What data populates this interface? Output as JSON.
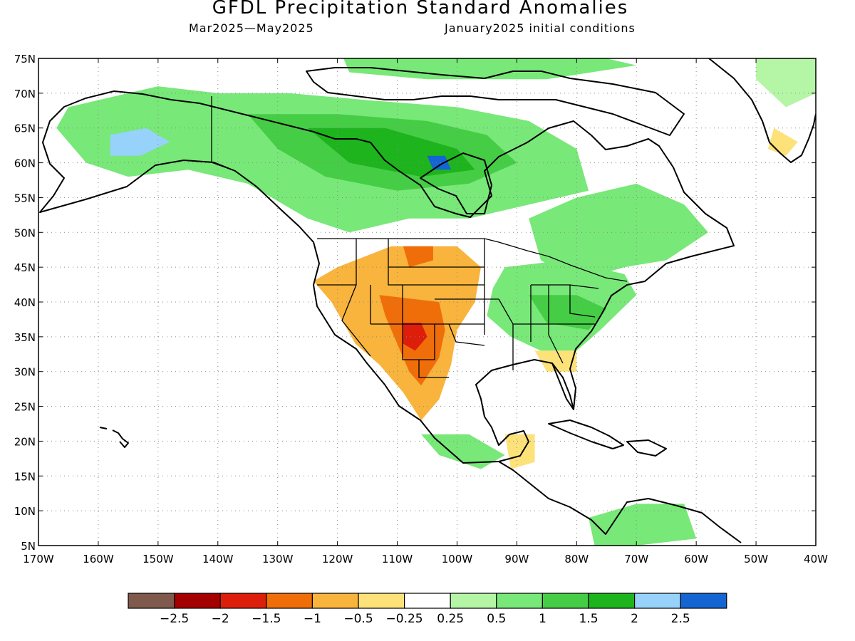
{
  "title": "GFDL Precipitation Standard Anomalies",
  "subtitle_left": "Mar2025—May2025",
  "subtitle_right": "January2025 initial conditions",
  "lat_ticks": [
    {
      "value": 75,
      "label": "75N"
    },
    {
      "value": 70,
      "label": "70N"
    },
    {
      "value": 65,
      "label": "65N"
    },
    {
      "value": 60,
      "label": "60N"
    },
    {
      "value": 55,
      "label": "55N"
    },
    {
      "value": 50,
      "label": "50N"
    },
    {
      "value": 45,
      "label": "45N"
    },
    {
      "value": 40,
      "label": "40N"
    },
    {
      "value": 35,
      "label": "35N"
    },
    {
      "value": 30,
      "label": "30N"
    },
    {
      "value": 25,
      "label": "25N"
    },
    {
      "value": 20,
      "label": "20N"
    },
    {
      "value": 15,
      "label": "15N"
    },
    {
      "value": 10,
      "label": "10N"
    },
    {
      "value": 5,
      "label": "5N"
    }
  ],
  "lon_ticks": [
    {
      "value": -170,
      "label": "170W"
    },
    {
      "value": -160,
      "label": "160W"
    },
    {
      "value": -150,
      "label": "150W"
    },
    {
      "value": -140,
      "label": "140W"
    },
    {
      "value": -130,
      "label": "130W"
    },
    {
      "value": -120,
      "label": "120W"
    },
    {
      "value": -110,
      "label": "110W"
    },
    {
      "value": -100,
      "label": "100W"
    },
    {
      "value": -90,
      "label": "90W"
    },
    {
      "value": -80,
      "label": "80W"
    },
    {
      "value": -70,
      "label": "70W"
    },
    {
      "value": -60,
      "label": "60W"
    },
    {
      "value": -50,
      "label": "50W"
    },
    {
      "value": -40,
      "label": "40W"
    }
  ],
  "colorbar": {
    "colors": [
      "#7f5a4c",
      "#a50000",
      "#dc1e0a",
      "#f06e0a",
      "#f8b43c",
      "#fde27a",
      "#ffffff",
      "#b4f5a6",
      "#78e878",
      "#46cd46",
      "#1eb41e",
      "#96d2fa",
      "#1464d2"
    ],
    "labels": [
      "−2.5",
      "−2",
      "−1.5",
      "−1",
      "−0.5",
      "−0.25",
      "0.25",
      "0.5",
      "1",
      "1.5",
      "2",
      "2.5"
    ]
  },
  "regions": [
    {
      "name": "northern-canada",
      "color": "#78e878",
      "points": [
        [
          -165,
          68
        ],
        [
          -150,
          71
        ],
        [
          -140,
          70
        ],
        [
          -128,
          70
        ],
        [
          -115,
          69
        ],
        [
          -100,
          68
        ],
        [
          -88,
          66
        ],
        [
          -80,
          62
        ],
        [
          -78,
          56
        ],
        [
          -88,
          54
        ],
        [
          -98,
          52
        ],
        [
          -108,
          52
        ],
        [
          -118,
          50
        ],
        [
          -125,
          52
        ],
        [
          -135,
          57
        ],
        [
          -145,
          59
        ],
        [
          -155,
          58
        ],
        [
          -162,
          60
        ],
        [
          -167,
          65
        ]
      ]
    },
    {
      "name": "canada-core",
      "color": "#46cd46",
      "points": [
        [
          -135,
          67
        ],
        [
          -120,
          67
        ],
        [
          -105,
          66
        ],
        [
          -95,
          64
        ],
        [
          -90,
          60
        ],
        [
          -98,
          57
        ],
        [
          -110,
          56
        ],
        [
          -122,
          58
        ],
        [
          -130,
          62
        ]
      ]
    },
    {
      "name": "canada-strong",
      "color": "#1eb41e",
      "points": [
        [
          -125,
          65
        ],
        [
          -112,
          65
        ],
        [
          -100,
          62
        ],
        [
          -97,
          59
        ],
        [
          -106,
          58
        ],
        [
          -118,
          60
        ]
      ]
    },
    {
      "name": "alaska-wet",
      "color": "#96d2fa",
      "points": [
        [
          -158,
          64
        ],
        [
          -152,
          65
        ],
        [
          -148,
          63
        ],
        [
          -153,
          61
        ],
        [
          -158,
          61
        ]
      ]
    },
    {
      "name": "hudson-bay-wet",
      "color": "#1464d2",
      "points": [
        [
          -105,
          61
        ],
        [
          -102,
          61
        ],
        [
          -101,
          59
        ],
        [
          -104,
          59
        ]
      ]
    },
    {
      "name": "arctic-islands",
      "color": "#78e878",
      "points": [
        [
          -120,
          77
        ],
        [
          -100,
          78
        ],
        [
          -80,
          76
        ],
        [
          -70,
          74
        ],
        [
          -85,
          72
        ],
        [
          -105,
          72
        ],
        [
          -118,
          73
        ]
      ]
    },
    {
      "name": "greenland-north",
      "color": "#b4f5a6",
      "points": [
        [
          -50,
          77
        ],
        [
          -40,
          77
        ],
        [
          -40,
          70
        ],
        [
          -45,
          68
        ],
        [
          -50,
          72
        ]
      ]
    },
    {
      "name": "greenland-dry",
      "color": "#fde27a",
      "points": [
        [
          -47,
          65
        ],
        [
          -43,
          63
        ],
        [
          -45,
          61
        ],
        [
          -48,
          62
        ]
      ]
    },
    {
      "name": "eastern-canada",
      "color": "#78e878",
      "points": [
        [
          -88,
          52
        ],
        [
          -80,
          55
        ],
        [
          -70,
          57
        ],
        [
          -62,
          54
        ],
        [
          -58,
          50
        ],
        [
          -65,
          46
        ],
        [
          -72,
          45
        ],
        [
          -80,
          43
        ],
        [
          -86,
          46
        ]
      ]
    },
    {
      "name": "eastern-us",
      "color": "#78e878",
      "points": [
        [
          -92,
          45
        ],
        [
          -82,
          46
        ],
        [
          -72,
          44
        ],
        [
          -70,
          41
        ],
        [
          -76,
          36
        ],
        [
          -80,
          33
        ],
        [
          -86,
          33
        ],
        [
          -91,
          35
        ],
        [
          -95,
          38
        ],
        [
          -94,
          42
        ]
      ]
    },
    {
      "name": "eastern-us-core",
      "color": "#46cd46",
      "points": [
        [
          -88,
          41
        ],
        [
          -80,
          41
        ],
        [
          -75,
          39
        ],
        [
          -78,
          36
        ],
        [
          -85,
          37
        ]
      ]
    },
    {
      "name": "southwest-dry",
      "color": "#f8b43c",
      "points": [
        [
          -120,
          45
        ],
        [
          -111,
          48
        ],
        [
          -100,
          48
        ],
        [
          -96,
          45
        ],
        [
          -97,
          40
        ],
        [
          -100,
          36
        ],
        [
          -101,
          31
        ],
        [
          -103,
          26
        ],
        [
          -106,
          23
        ],
        [
          -109,
          27
        ],
        [
          -113,
          31
        ],
        [
          -117,
          34
        ],
        [
          -121,
          40
        ],
        [
          -124,
          43
        ]
      ]
    },
    {
      "name": "southwest-core",
      "color": "#f06e0a",
      "points": [
        [
          -113,
          41
        ],
        [
          -103,
          40
        ],
        [
          -102,
          36
        ],
        [
          -103,
          32
        ],
        [
          -106,
          28
        ],
        [
          -108,
          30
        ],
        [
          -110,
          34
        ],
        [
          -112,
          38
        ]
      ]
    },
    {
      "name": "southwest-peak",
      "color": "#dc1e0a",
      "points": [
        [
          -109,
          37
        ],
        [
          -106,
          37
        ],
        [
          -105,
          35
        ],
        [
          -107,
          33
        ],
        [
          -109,
          34
        ]
      ]
    },
    {
      "name": "montana-dry",
      "color": "#f06e0a",
      "points": [
        [
          -109,
          48
        ],
        [
          -104,
          48
        ],
        [
          -104,
          46
        ],
        [
          -108,
          45
        ]
      ]
    },
    {
      "name": "southeast-dry",
      "color": "#fde27a",
      "points": [
        [
          -87,
          33
        ],
        [
          -80,
          33
        ],
        [
          -80,
          30
        ],
        [
          -85,
          30
        ]
      ]
    },
    {
      "name": "mexico-south-wet",
      "color": "#78e878",
      "points": [
        [
          -106,
          21
        ],
        [
          -98,
          21
        ],
        [
          -92,
          18
        ],
        [
          -96,
          16
        ],
        [
          -103,
          18
        ]
      ]
    },
    {
      "name": "yucatan-dry",
      "color": "#fde27a",
      "points": [
        [
          -92,
          21
        ],
        [
          -87,
          21
        ],
        [
          -87,
          17
        ],
        [
          -91,
          16
        ]
      ]
    },
    {
      "name": "south-america-wet",
      "color": "#78e878",
      "points": [
        [
          -78,
          9
        ],
        [
          -70,
          11
        ],
        [
          -62,
          11
        ],
        [
          -60,
          6
        ],
        [
          -70,
          5
        ],
        [
          -77,
          5
        ]
      ]
    }
  ]
}
